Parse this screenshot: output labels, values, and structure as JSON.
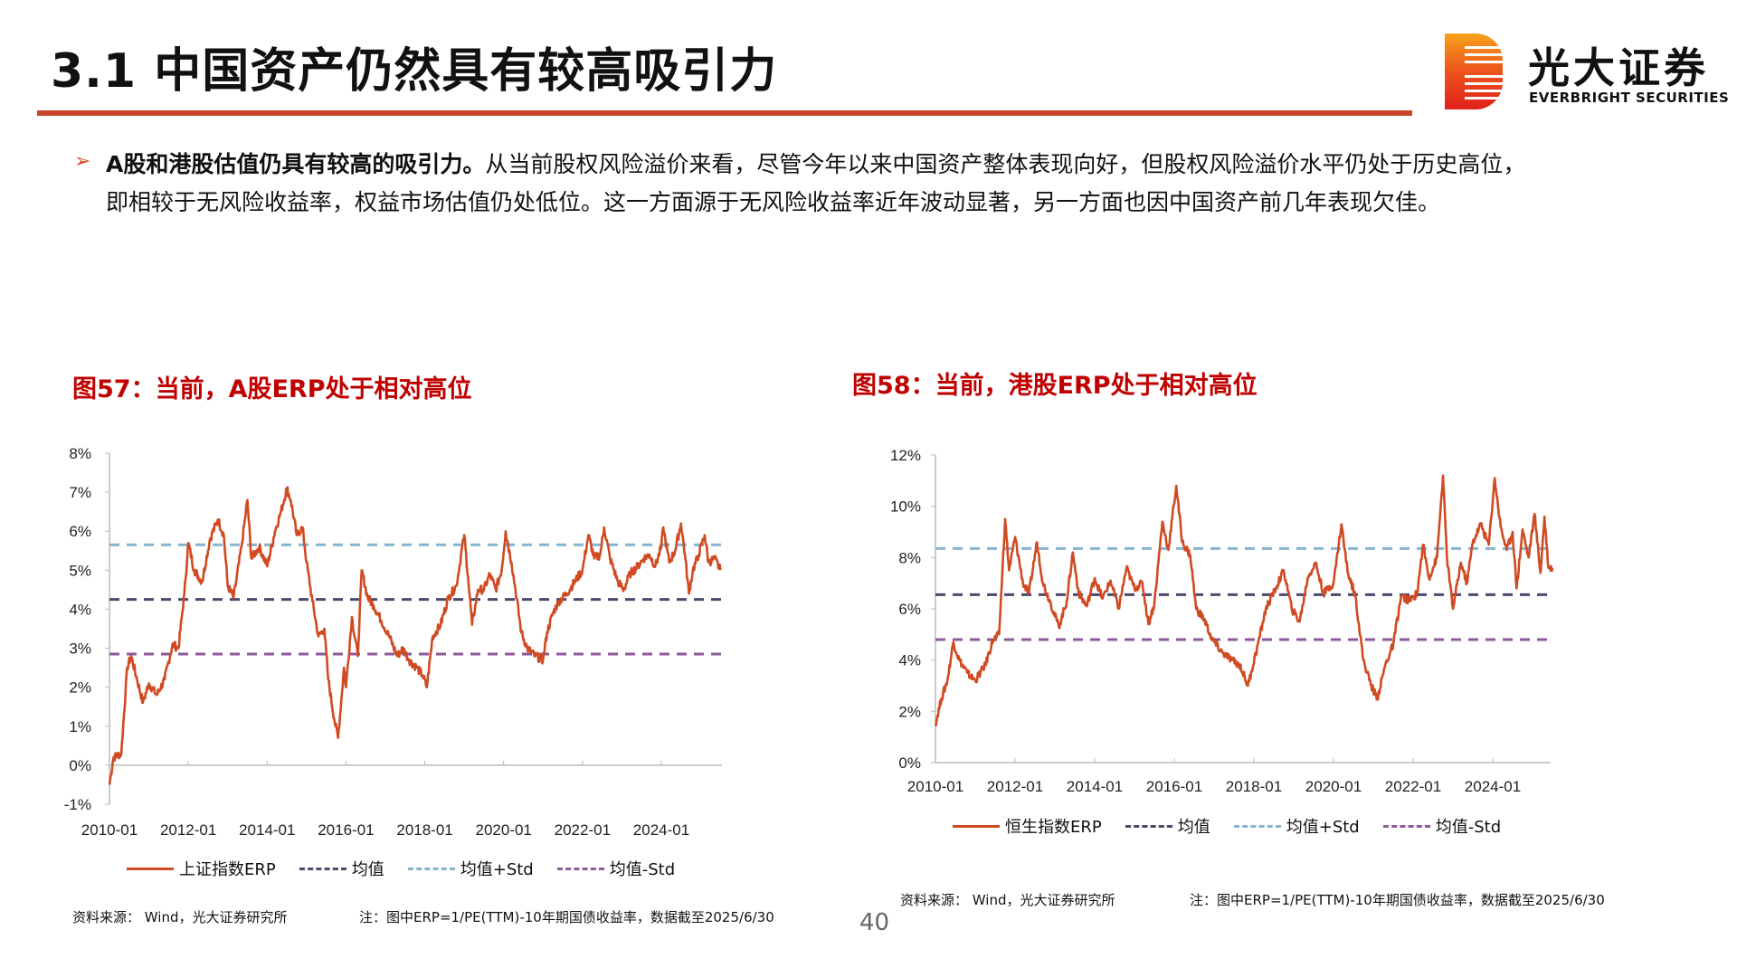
{
  "header": {
    "title": "3.1 中国资产仍然具有较高吸引力",
    "logo_cn": "光大证券",
    "logo_en": "EVERBRIGHT SECURITIES"
  },
  "body": {
    "bullet_lead": "A股和港股估值仍具有较高的吸引力。",
    "bullet_rest": "从当前股权风险溢价来看，尽管今年以来中国资产整体表现向好，但股权风险溢价水平仍处于历史高位，",
    "bullet_line2": "即相较于无风险收益率，权益市场估值仍处低位。这一方面源于无风险收益率近年波动显著，另一方面也因中国资产前几年表现欠佳。"
  },
  "colors": {
    "series": "#d04a22",
    "mean": "#4b4a6e",
    "plus_std": "#86b4cf",
    "minus_std": "#8e5a9a",
    "title": "#c00000"
  },
  "page_number": "40",
  "chart_data": [
    {
      "type": "line",
      "title": "图57：当前，A股ERP处于相对高位",
      "ylim": [
        -1,
        8
      ],
      "yticks": [
        "-1%",
        "0%",
        "1%",
        "2%",
        "3%",
        "4%",
        "5%",
        "6%",
        "7%",
        "8%"
      ],
      "ytick_values": [
        -1,
        0,
        1,
        2,
        3,
        4,
        5,
        6,
        7,
        8
      ],
      "xticks": [
        "2010-01",
        "2012-01",
        "2014-01",
        "2016-01",
        "2018-01",
        "2020-01",
        "2022-01",
        "2024-01"
      ],
      "xtick_values": [
        2010,
        2012,
        2014,
        2016,
        2018,
        2020,
        2022,
        2024
      ],
      "xlim": [
        2010,
        2025.5
      ],
      "legend": [
        "上证指数ERP",
        "均值",
        "均值+Std",
        "均值-Std"
      ],
      "mean": 4.25,
      "plus_std": 5.65,
      "minus_std": 2.85,
      "source": "资料来源：  Wind，光大证券研究所",
      "note": "注：图中ERP=1/PE(TTM)-10年期国债收益率，数据截至2025/6/30",
      "series": {
        "name": "上证指数ERP",
        "x": [
          2010.0,
          2010.1,
          2010.3,
          2010.45,
          2010.55,
          2010.7,
          2010.85,
          2011.0,
          2011.2,
          2011.4,
          2011.6,
          2011.75,
          2011.9,
          2012.0,
          2012.15,
          2012.35,
          2012.55,
          2012.75,
          2012.9,
          2013.0,
          2013.15,
          2013.35,
          2013.5,
          2013.6,
          2013.8,
          2014.0,
          2014.2,
          2014.35,
          2014.5,
          2014.6,
          2014.75,
          2014.9,
          2015.0,
          2015.15,
          2015.3,
          2015.45,
          2015.55,
          2015.7,
          2015.8,
          2015.95,
          2016.0,
          2016.15,
          2016.3,
          2016.4,
          2016.55,
          2016.7,
          2016.9,
          2017.1,
          2017.3,
          2017.45,
          2017.6,
          2017.8,
          2017.95,
          2018.05,
          2018.2,
          2018.4,
          2018.6,
          2018.8,
          2019.0,
          2019.1,
          2019.2,
          2019.35,
          2019.5,
          2019.65,
          2019.8,
          2019.95,
          2020.05,
          2020.2,
          2020.3,
          2020.45,
          2020.6,
          2020.8,
          2021.0,
          2021.1,
          2021.25,
          2021.4,
          2021.6,
          2021.8,
          2022.0,
          2022.15,
          2022.3,
          2022.45,
          2022.55,
          2022.7,
          2022.9,
          2023.05,
          2023.2,
          2023.4,
          2023.55,
          2023.7,
          2023.85,
          2024.0,
          2024.05,
          2024.2,
          2024.35,
          2024.5,
          2024.6,
          2024.7,
          2024.8,
          2024.95,
          2025.1,
          2025.2,
          2025.35,
          2025.5
        ],
        "y": [
          -0.5,
          0.2,
          0.3,
          2.5,
          2.8,
          2.2,
          1.6,
          2.1,
          1.8,
          2.2,
          3.1,
          3.0,
          4.4,
          5.7,
          5.0,
          4.7,
          5.8,
          6.3,
          5.9,
          4.6,
          4.3,
          5.6,
          6.8,
          5.3,
          5.6,
          5.1,
          6.0,
          6.5,
          7.1,
          6.8,
          5.9,
          6.1,
          5.2,
          4.2,
          3.3,
          3.5,
          2.2,
          1.2,
          0.7,
          2.5,
          2.0,
          3.8,
          2.8,
          5.0,
          4.3,
          4.1,
          3.7,
          3.3,
          2.8,
          3.0,
          2.7,
          2.5,
          2.3,
          2.0,
          3.3,
          3.6,
          4.3,
          4.6,
          5.9,
          4.8,
          3.6,
          4.5,
          4.5,
          4.9,
          4.5,
          5.0,
          6.0,
          5.2,
          4.5,
          3.4,
          3.0,
          2.8,
          2.7,
          3.4,
          3.9,
          4.2,
          4.4,
          4.7,
          5.0,
          5.9,
          5.3,
          5.4,
          6.1,
          5.3,
          4.7,
          4.5,
          4.9,
          5.1,
          5.3,
          5.4,
          5.1,
          5.6,
          6.1,
          5.2,
          5.5,
          6.2,
          5.4,
          4.4,
          5.0,
          5.4,
          5.9,
          5.2,
          5.3,
          5.0
        ]
      }
    },
    {
      "type": "line",
      "title": "图58：当前，港股ERP处于相对高位",
      "ylim": [
        0,
        12
      ],
      "yticks": [
        "0%",
        "2%",
        "4%",
        "6%",
        "8%",
        "10%",
        "12%"
      ],
      "ytick_values": [
        0,
        2,
        4,
        6,
        8,
        10,
        12
      ],
      "xticks": [
        "2010-01",
        "2012-01",
        "2014-01",
        "2016-01",
        "2018-01",
        "2020-01",
        "2022-01",
        "2024-01"
      ],
      "xtick_values": [
        2010,
        2012,
        2014,
        2016,
        2018,
        2020,
        2022,
        2024
      ],
      "xlim": [
        2010,
        2025.5
      ],
      "legend": [
        "恒生指数ERP",
        "均值",
        "均值+Std",
        "均值-Std"
      ],
      "mean": 6.55,
      "plus_std": 8.35,
      "minus_std": 4.8,
      "source": "资料来源：  Wind，光大证券研究所",
      "note": "注：图中ERP=1/PE(TTM)-10年期国债收益率，数据截至2025/6/30",
      "series": {
        "name": "恒生指数ERP",
        "x": [
          2010.0,
          2010.15,
          2010.3,
          2010.45,
          2010.6,
          2010.8,
          2011.0,
          2011.25,
          2011.45,
          2011.6,
          2011.75,
          2011.85,
          2012.0,
          2012.2,
          2012.35,
          2012.55,
          2012.7,
          2012.9,
          2013.1,
          2013.3,
          2013.45,
          2013.6,
          2013.8,
          2014.0,
          2014.2,
          2014.4,
          2014.6,
          2014.8,
          2015.0,
          2015.2,
          2015.35,
          2015.5,
          2015.7,
          2015.85,
          2016.05,
          2016.2,
          2016.4,
          2016.55,
          2016.75,
          2016.95,
          2017.2,
          2017.45,
          2017.65,
          2017.85,
          2018.1,
          2018.3,
          2018.55,
          2018.75,
          2018.95,
          2019.15,
          2019.35,
          2019.55,
          2019.75,
          2020.0,
          2020.2,
          2020.35,
          2020.55,
          2020.75,
          2020.95,
          2021.1,
          2021.3,
          2021.5,
          2021.7,
          2021.9,
          2022.1,
          2022.25,
          2022.4,
          2022.6,
          2022.75,
          2022.85,
          2023.0,
          2023.2,
          2023.35,
          2023.5,
          2023.7,
          2023.9,
          2024.05,
          2024.2,
          2024.35,
          2024.5,
          2024.6,
          2024.75,
          2024.9,
          2025.05,
          2025.2,
          2025.3,
          2025.4,
          2025.5
        ],
        "y": [
          1.5,
          2.5,
          3.2,
          4.7,
          4.0,
          3.5,
          3.2,
          3.8,
          4.8,
          5.0,
          9.5,
          7.5,
          8.8,
          7.0,
          6.6,
          8.6,
          7.0,
          6.2,
          5.3,
          6.3,
          8.2,
          6.6,
          6.1,
          7.2,
          6.4,
          7.1,
          6.0,
          7.6,
          6.8,
          7.0,
          5.4,
          6.2,
          9.4,
          8.3,
          10.8,
          8.6,
          8.1,
          6.0,
          5.6,
          4.8,
          4.3,
          4.0,
          3.8,
          3.0,
          4.6,
          6.0,
          6.8,
          7.5,
          6.0,
          5.5,
          7.2,
          7.8,
          6.6,
          7.0,
          9.3,
          7.5,
          6.5,
          4.0,
          3.0,
          2.5,
          3.8,
          4.6,
          6.5,
          6.3,
          6.6,
          8.5,
          7.2,
          8.0,
          11.2,
          8.0,
          6.0,
          7.8,
          7.0,
          8.6,
          9.3,
          8.5,
          11.1,
          9.2,
          8.3,
          9.0,
          6.8,
          9.1,
          8.0,
          9.7,
          7.4,
          9.6,
          7.6,
          7.6
        ]
      }
    }
  ]
}
